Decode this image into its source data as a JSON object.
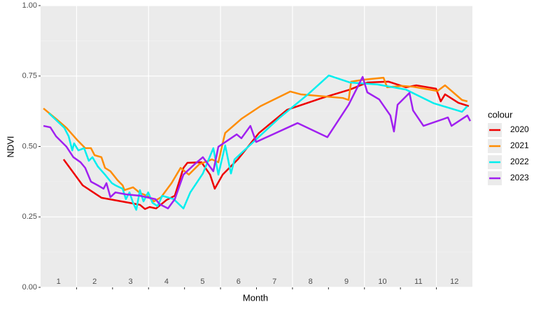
{
  "chart_data": {
    "type": "line",
    "xlabel": "Month",
    "ylabel": "NDVI",
    "legend_title": "colour",
    "legend": "right",
    "grid": true,
    "xlim": [
      1,
      13
    ],
    "ylim": [
      0,
      1
    ],
    "xticks": [
      2,
      3,
      4,
      5,
      6,
      7,
      8,
      9,
      10,
      11,
      12
    ],
    "categories": [
      "1",
      "2",
      "3",
      "4",
      "5",
      "6",
      "7",
      "8",
      "9",
      "10",
      "11",
      "12"
    ],
    "yticks": [
      {
        "value": 0,
        "label": "0.00"
      },
      {
        "value": 0.25,
        "label": "0.25"
      },
      {
        "value": 0.5,
        "label": "0.50"
      },
      {
        "value": 0.75,
        "label": "0.75"
      },
      {
        "value": 1,
        "label": "1.00"
      }
    ],
    "series": [
      {
        "name": "2020",
        "color": "#ee0000",
        "x": [
          1.64,
          2.17,
          2.69,
          3.47,
          3.76,
          3.9,
          4.03,
          4.21,
          4.5,
          4.73,
          4.97,
          5.08,
          5.47,
          5.71,
          5.84,
          6.06,
          6.48,
          7.07,
          7.85,
          8.82,
          9.6,
          10.08,
          10.67,
          11.15,
          11.44,
          11.99,
          12.12,
          12.24,
          12.61,
          12.9
        ],
        "values": [
          0.454,
          0.362,
          0.318,
          0.3,
          0.293,
          0.278,
          0.285,
          0.28,
          0.31,
          0.325,
          0.424,
          0.442,
          0.444,
          0.4,
          0.35,
          0.4,
          0.454,
          0.548,
          0.63,
          0.672,
          0.702,
          0.727,
          0.73,
          0.71,
          0.717,
          0.705,
          0.66,
          0.685,
          0.655,
          0.643
        ]
      },
      {
        "name": "2021",
        "color": "#ff8c00",
        "x": [
          1.08,
          1.43,
          1.72,
          2.01,
          2.24,
          2.4,
          2.5,
          2.69,
          2.79,
          2.94,
          3.14,
          3.28,
          3.33,
          3.57,
          3.76,
          3.96,
          4.15,
          4.35,
          4.64,
          4.89,
          5.12,
          5.41,
          5.76,
          5.94,
          6.1,
          6.13,
          6.58,
          7.11,
          7.94,
          8.23,
          9.4,
          9.56,
          9.63,
          9.98,
          10.53,
          10.63,
          11.05,
          11.35,
          12.03,
          12.24,
          12.71,
          12.86
        ],
        "values": [
          0.635,
          0.598,
          0.566,
          0.524,
          0.494,
          0.494,
          0.469,
          0.462,
          0.424,
          0.412,
          0.38,
          0.362,
          0.345,
          0.355,
          0.335,
          0.325,
          0.305,
          0.32,
          0.37,
          0.424,
          0.4,
          0.437,
          0.454,
          0.444,
          0.533,
          0.548,
          0.598,
          0.643,
          0.695,
          0.685,
          0.672,
          0.665,
          0.73,
          0.737,
          0.744,
          0.71,
          0.715,
          0.712,
          0.697,
          0.717,
          0.665,
          0.66
        ]
      },
      {
        "name": "2022",
        "color": "#00eeee",
        "x": [
          1.23,
          1.66,
          1.78,
          1.88,
          1.93,
          2.05,
          2.21,
          2.34,
          2.44,
          2.59,
          2.79,
          2.98,
          3.08,
          3.28,
          3.37,
          3.47,
          3.57,
          3.66,
          3.76,
          3.86,
          3.99,
          4.11,
          4.25,
          4.38,
          4.7,
          4.97,
          5.16,
          5.51,
          5.8,
          5.94,
          6.13,
          6.29,
          6.39,
          6.87,
          7.65,
          8.43,
          9.01,
          9.6,
          10.37,
          11.15,
          11.93,
          12.71,
          12.86
        ],
        "values": [
          0.618,
          0.566,
          0.536,
          0.486,
          0.511,
          0.486,
          0.494,
          0.449,
          0.462,
          0.429,
          0.4,
          0.37,
          0.362,
          0.35,
          0.313,
          0.337,
          0.3,
          0.275,
          0.345,
          0.305,
          0.337,
          0.3,
          0.288,
          0.325,
          0.313,
          0.28,
          0.337,
          0.404,
          0.494,
          0.4,
          0.504,
          0.404,
          0.454,
          0.511,
          0.603,
          0.685,
          0.752,
          0.727,
          0.72,
          0.702,
          0.653,
          0.623,
          0.643
        ]
      },
      {
        "name": "2023",
        "color": "#a020f0",
        "x": [
          1.08,
          1.27,
          1.43,
          1.72,
          1.91,
          2.11,
          2.24,
          2.4,
          2.59,
          2.75,
          2.83,
          2.94,
          3.08,
          3.37,
          3.76,
          4.19,
          4.31,
          4.54,
          4.73,
          4.97,
          5.28,
          5.51,
          5.8,
          5.94,
          6.45,
          6.58,
          6.83,
          6.99,
          8.14,
          8.97,
          9.56,
          9.95,
          10.08,
          10.41,
          10.72,
          10.82,
          10.92,
          11.25,
          11.35,
          11.64,
          12.32,
          12.42,
          12.86,
          12.94
        ],
        "values": [
          0.573,
          0.568,
          0.536,
          0.499,
          0.462,
          0.444,
          0.424,
          0.375,
          0.362,
          0.35,
          0.37,
          0.32,
          0.337,
          0.33,
          0.325,
          0.313,
          0.295,
          0.28,
          0.313,
          0.4,
          0.437,
          0.462,
          0.412,
          0.499,
          0.543,
          0.529,
          0.573,
          0.516,
          0.583,
          0.533,
          0.648,
          0.747,
          0.692,
          0.667,
          0.61,
          0.553,
          0.648,
          0.69,
          0.628,
          0.573,
          0.603,
          0.573,
          0.61,
          0.59
        ]
      }
    ]
  }
}
